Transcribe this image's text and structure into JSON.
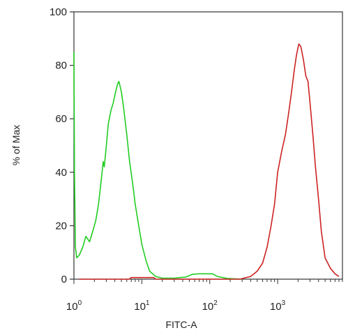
{
  "chart_data": {
    "type": "line",
    "xlabel": "FITC-A",
    "ylabel": "% of Max",
    "xscale": "log",
    "xlim": [
      1,
      9000
    ],
    "ylim": [
      0,
      100
    ],
    "grid": false,
    "x_ticks": [
      {
        "base": "10",
        "exp": "0",
        "value": 1
      },
      {
        "base": "10",
        "exp": "1",
        "value": 10
      },
      {
        "base": "10",
        "exp": "2",
        "value": 100
      },
      {
        "base": "10",
        "exp": "3",
        "value": 1000
      }
    ],
    "y_ticks": [
      "0",
      "20",
      "40",
      "60",
      "80",
      "100"
    ],
    "y_tick_values": [
      0,
      20,
      40,
      60,
      80,
      100
    ],
    "series": [
      {
        "color": "#22cc22",
        "points": [
          [
            1.0,
            85
          ],
          [
            1.02,
            40
          ],
          [
            1.05,
            12
          ],
          [
            1.1,
            8
          ],
          [
            1.2,
            9
          ],
          [
            1.35,
            12
          ],
          [
            1.5,
            16
          ],
          [
            1.7,
            14
          ],
          [
            1.9,
            18
          ],
          [
            2.1,
            22
          ],
          [
            2.3,
            28
          ],
          [
            2.5,
            36
          ],
          [
            2.7,
            44
          ],
          [
            2.8,
            42
          ],
          [
            3.0,
            50
          ],
          [
            3.2,
            58
          ],
          [
            3.5,
            63
          ],
          [
            3.8,
            66
          ],
          [
            4.1,
            70
          ],
          [
            4.4,
            73
          ],
          [
            4.6,
            74
          ],
          [
            5.0,
            70
          ],
          [
            5.4,
            64
          ],
          [
            6.0,
            54
          ],
          [
            6.6,
            44
          ],
          [
            7.3,
            36
          ],
          [
            8.0,
            28
          ],
          [
            9.0,
            20
          ],
          [
            10.0,
            13
          ],
          [
            11.5,
            7
          ],
          [
            13.0,
            3
          ],
          [
            16.0,
            1
          ],
          [
            20.0,
            0.4
          ],
          [
            30.0,
            0.4
          ],
          [
            45.0,
            0.8
          ],
          [
            55.0,
            1.8
          ],
          [
            70.0,
            2.0
          ],
          [
            90.0,
            2.0
          ],
          [
            110.0,
            2.0
          ],
          [
            130.0,
            1.0
          ],
          [
            180.0,
            0.3
          ],
          [
            300.0,
            0
          ]
        ]
      },
      {
        "color": "#cc2222",
        "points": [
          [
            1.2,
            0
          ],
          [
            6.5,
            0
          ],
          [
            7.0,
            0.6
          ],
          [
            15.0,
            0.6
          ],
          [
            16.0,
            0
          ],
          [
            280.0,
            0
          ],
          [
            330.0,
            0.5
          ],
          [
            400.0,
            1
          ],
          [
            500.0,
            3
          ],
          [
            600.0,
            6
          ],
          [
            700.0,
            12
          ],
          [
            800.0,
            20
          ],
          [
            900.0,
            28
          ],
          [
            1000.0,
            40
          ],
          [
            1150.0,
            48
          ],
          [
            1300.0,
            54
          ],
          [
            1450.0,
            62
          ],
          [
            1600.0,
            70
          ],
          [
            1750.0,
            78
          ],
          [
            1900.0,
            84
          ],
          [
            2050.0,
            88
          ],
          [
            2200.0,
            87
          ],
          [
            2400.0,
            82
          ],
          [
            2600.0,
            76
          ],
          [
            2800.0,
            74
          ],
          [
            3000.0,
            66
          ],
          [
            3300.0,
            54
          ],
          [
            3600.0,
            42
          ],
          [
            4000.0,
            30
          ],
          [
            4400.0,
            18
          ],
          [
            5000.0,
            8
          ],
          [
            6000.0,
            4
          ],
          [
            7000.0,
            2
          ],
          [
            8000.0,
            1
          ]
        ]
      }
    ]
  }
}
